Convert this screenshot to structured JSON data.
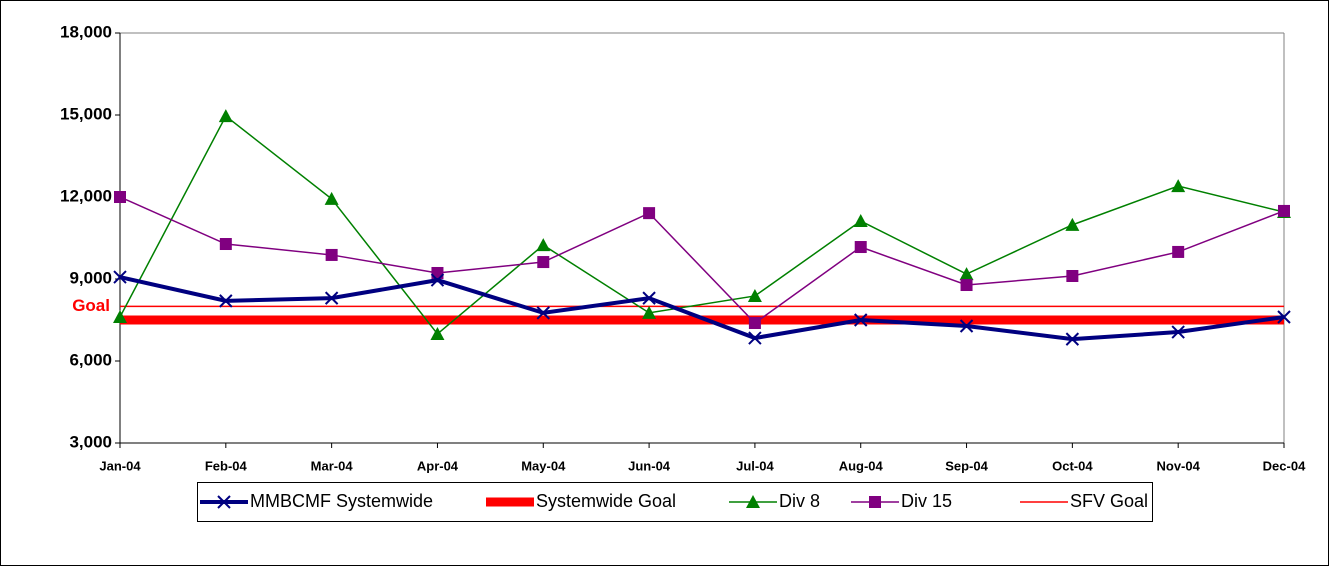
{
  "chart_data": {
    "type": "line",
    "annotation": "Goal",
    "categories": [
      "Jan-04",
      "Feb-04",
      "Mar-04",
      "Apr-04",
      "May-04",
      "Jun-04",
      "Jul-04",
      "Aug-04",
      "Sep-04",
      "Oct-04",
      "Nov-04",
      "Dec-04"
    ],
    "series": [
      {
        "name": "MMBCMF Systemwide",
        "color": "#000080",
        "marker": "x",
        "values": [
          9070,
          8200,
          8300,
          8960,
          7760,
          8300,
          6840,
          7500,
          7280,
          6800,
          7060,
          7610
        ]
      },
      {
        "name": "Systemwide Goal",
        "color": "#ff0000",
        "marker": "none",
        "values": [
          7500,
          7500,
          7500,
          7500,
          7500,
          7500,
          7500,
          7500,
          7500,
          7500,
          7500,
          7500
        ]
      },
      {
        "name": "Div 8",
        "color": "#008000",
        "marker": "triangle",
        "values": [
          7610,
          14960,
          11930,
          6990,
          10240,
          7760,
          8380,
          11120,
          9180,
          10980,
          12400,
          11450
        ]
      },
      {
        "name": "Div 15",
        "color": "#800080",
        "marker": "square",
        "values": [
          12000,
          10280,
          9880,
          9220,
          9620,
          11410,
          7390,
          10170,
          8780,
          9110,
          9990,
          11490
        ]
      },
      {
        "name": "SFV  Goal",
        "color": "#ff0000",
        "marker": "none",
        "values": [
          8000,
          8000,
          8000,
          8000,
          8000,
          8000,
          8000,
          8000,
          8000,
          8000,
          8000,
          8000
        ]
      }
    ],
    "ylim": [
      3000,
      18000
    ],
    "yticks": [
      {
        "value": 3000,
        "label": "3,000"
      },
      {
        "value": 6000,
        "label": "6,000"
      },
      {
        "value": 9000,
        "label": "9,000"
      },
      {
        "value": 12000,
        "label": "12,000"
      },
      {
        "value": 15000,
        "label": "15,000"
      },
      {
        "value": 18000,
        "label": "18,000"
      }
    ],
    "grid": false,
    "legend": "bottom"
  }
}
